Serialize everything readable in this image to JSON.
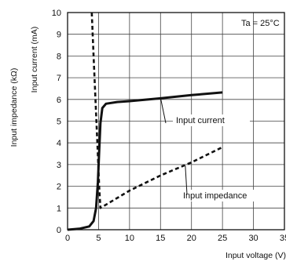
{
  "chart_data": {
    "type": "line",
    "ylabel_left_outer": "Input impedance (kΩ)",
    "ylabel_left_inner": "Input current (mA)",
    "xlabel": "Input voltage (V)",
    "condition": "Ta = 25°C",
    "xlim": [
      0,
      35
    ],
    "ylim": [
      0,
      10
    ],
    "x_ticks": [
      "0",
      "5",
      "10",
      "15",
      "20",
      "25",
      "30",
      "35"
    ],
    "y_ticks": [
      "0",
      "1",
      "2",
      "3",
      "4",
      "5",
      "6",
      "7",
      "8",
      "9",
      "10"
    ],
    "grid": true,
    "series": [
      {
        "name": "Input current",
        "style": "solid",
        "color": "#111111",
        "points": [
          [
            0,
            0.0
          ],
          [
            2,
            0.05
          ],
          [
            3.5,
            0.15
          ],
          [
            4.2,
            0.4
          ],
          [
            4.6,
            1.0
          ],
          [
            4.9,
            2.2
          ],
          [
            5.1,
            3.6
          ],
          [
            5.3,
            4.9
          ],
          [
            5.6,
            5.6
          ],
          [
            6.2,
            5.8
          ],
          [
            8,
            5.88
          ],
          [
            10,
            5.92
          ],
          [
            15,
            6.05
          ],
          [
            20,
            6.2
          ],
          [
            25,
            6.32
          ]
        ]
      },
      {
        "name": "Input impedance",
        "style": "dashed",
        "color": "#111111",
        "points": [
          [
            3.9,
            10
          ],
          [
            4.2,
            8
          ],
          [
            4.5,
            6
          ],
          [
            4.8,
            4
          ],
          [
            5.1,
            2
          ],
          [
            5.3,
            1.0
          ],
          [
            10,
            1.8
          ],
          [
            15,
            2.5
          ],
          [
            20,
            3.1
          ],
          [
            25,
            3.8
          ]
        ]
      }
    ],
    "annotations": [
      {
        "text": "Input current",
        "series": 0,
        "anchor_x": 15,
        "anchor_y": 6.08
      },
      {
        "text": "Input impedance",
        "series": 1,
        "anchor_x": 19,
        "anchor_y": 2.95
      }
    ]
  }
}
